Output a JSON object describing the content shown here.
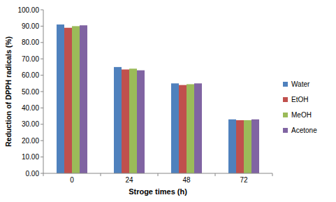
{
  "chart_data": {
    "type": "bar",
    "x_label": "Stroge times (h)",
    "y_label": "Reduction of DPPH radicals (%)",
    "categories": [
      "0",
      "24",
      "48",
      "72"
    ],
    "series": [
      {
        "name": "Water",
        "color": "#4f81bd",
        "values": [
          91,
          65,
          55,
          33
        ]
      },
      {
        "name": "EtOH",
        "color": "#c0504d",
        "values": [
          89,
          63.5,
          54,
          32.5
        ]
      },
      {
        "name": "MeOH",
        "color": "#9bbb59",
        "values": [
          90,
          64,
          54.5,
          32.5
        ]
      },
      {
        "name": "Acetone",
        "color": "#8064a2",
        "values": [
          90.5,
          63,
          55,
          33
        ]
      }
    ],
    "ylim": [
      0,
      100
    ],
    "yticks": [
      {
        "value": 0,
        "label": "0.00"
      },
      {
        "value": 10,
        "label": "10.00"
      },
      {
        "value": 20,
        "label": "20.00"
      },
      {
        "value": 30,
        "label": "30.00"
      },
      {
        "value": 40,
        "label": "40.00"
      },
      {
        "value": 50,
        "label": "50.00"
      },
      {
        "value": 60,
        "label": "60.00"
      },
      {
        "value": 70,
        "label": "70.00"
      },
      {
        "value": 80,
        "label": "80.00"
      },
      {
        "value": 90,
        "label": "90.00"
      },
      {
        "value": 100,
        "label": "100.00"
      }
    ],
    "grid": false,
    "legend": "right"
  }
}
